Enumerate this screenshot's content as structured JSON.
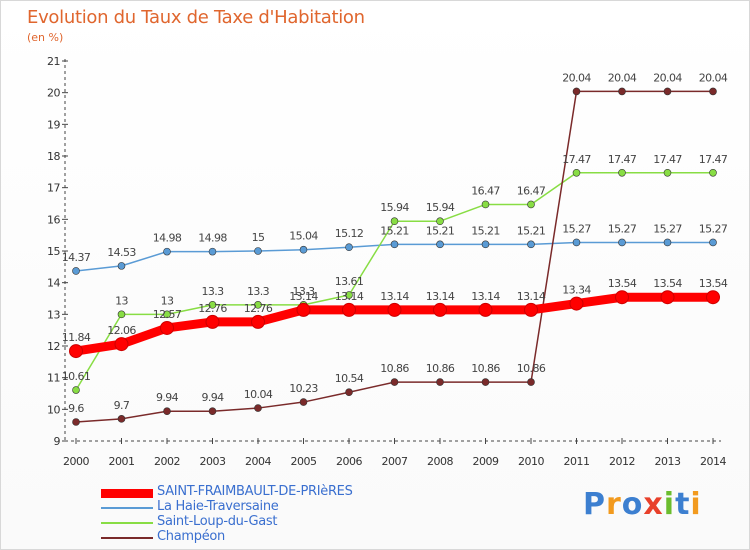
{
  "header": {
    "title": "Evolution du Taux de Taxe d'Habitation",
    "subtitle": "(en %)"
  },
  "chart_data": {
    "type": "line",
    "x": [
      "2000",
      "2001",
      "2002",
      "2003",
      "2004",
      "2005",
      "2006",
      "2007",
      "2008",
      "2009",
      "2010",
      "2011",
      "2012",
      "2013",
      "2014"
    ],
    "ylim": [
      9,
      21
    ],
    "yticks": [
      "9",
      "10",
      "11",
      "12",
      "13",
      "14",
      "15",
      "16",
      "17",
      "18",
      "19",
      "20",
      "21"
    ],
    "grid": "off",
    "legend_position": "bottom-left",
    "series": [
      {
        "name": "SAINT-FRAIMBAULT-DE-PRIèRES",
        "color": "#ff0000",
        "values": [
          11.84,
          12.06,
          12.57,
          12.76,
          12.76,
          13.14,
          13.14,
          13.14,
          13.14,
          13.14,
          13.14,
          13.34,
          13.54,
          13.54,
          13.54
        ],
        "labels": [
          "11.84",
          "12.06",
          "12.57",
          "12.76",
          "12.76",
          "13.14",
          "13.14",
          "13.14",
          "13.14",
          "13.14",
          "13.14",
          "13.34",
          "13.54",
          "13.54",
          "13.54"
        ]
      },
      {
        "name": "La Haie-Traversaine",
        "color": "#5a9bd5",
        "values": [
          14.37,
          14.53,
          14.98,
          14.98,
          15,
          15.04,
          15.12,
          15.21,
          15.21,
          15.21,
          15.21,
          15.27,
          15.27,
          15.27,
          15.27
        ],
        "labels": [
          "14.37",
          "14.53",
          "14.98",
          "14.98",
          "15",
          "15.04",
          "15.12",
          "15.21",
          "15.21",
          "15.21",
          "15.21",
          "15.27",
          "15.27",
          "15.27",
          "15.27"
        ]
      },
      {
        "name": "Saint-Loup-du-Gast",
        "color": "#88dd44",
        "values": [
          10.61,
          13,
          13,
          13.3,
          13.3,
          13.3,
          13.61,
          15.94,
          15.94,
          16.47,
          16.47,
          17.47,
          17.47,
          17.47,
          17.47
        ],
        "labels": [
          "10.61",
          "13",
          "13",
          "13.3",
          "13.3",
          "13.3",
          "13.61",
          "15.94",
          "15.94",
          "16.47",
          "16.47",
          "17.47",
          "17.47",
          "17.47",
          "17.47"
        ]
      },
      {
        "name": "Champéon",
        "color": "#7a2a2a",
        "values": [
          9.6,
          9.7,
          9.94,
          9.94,
          10.04,
          10.23,
          10.54,
          10.86,
          10.86,
          10.86,
          10.86,
          20.04,
          20.04,
          20.04,
          20.04
        ],
        "labels": [
          "9.6",
          "9.7",
          "9.94",
          "9.94",
          "10.04",
          "10.23",
          "10.54",
          "10.86",
          "10.86",
          "10.86",
          "10.86",
          "20.04",
          "20.04",
          "20.04",
          "20.04"
        ]
      }
    ]
  },
  "logo": {
    "text": "Proxiti",
    "letters": [
      "P",
      "r",
      "o",
      "x",
      "i",
      "t",
      "i"
    ],
    "colors": [
      "#3c7fd0",
      "#f29a1e",
      "#3c7fd0",
      "#e8402a",
      "#6bbd2e",
      "#3c7fd0",
      "#f29a1e"
    ]
  }
}
